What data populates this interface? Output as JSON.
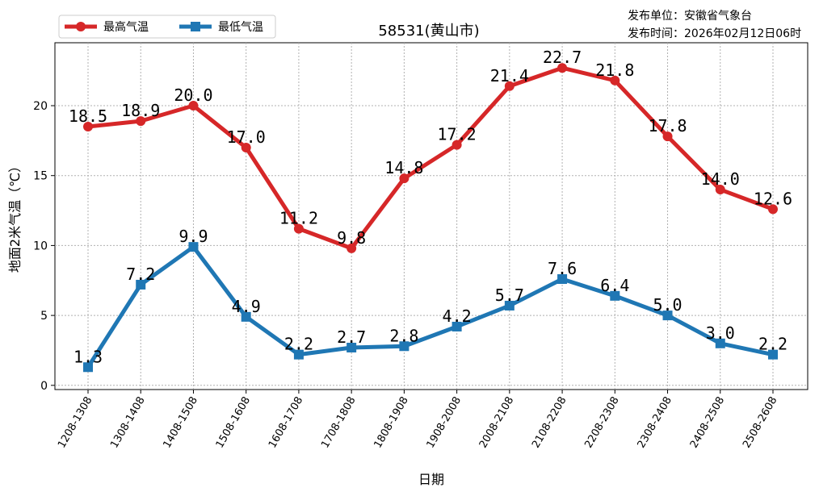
{
  "publish": {
    "unit_label": "发布单位：安徽省气象台",
    "time_label": "发布时间：2026年02月12日06时"
  },
  "chart_data": {
    "type": "line",
    "title": "58531(黄山市)",
    "xlabel": "日期",
    "ylabel": "地面2米气温（℃）",
    "ylim": [
      -0.3,
      24.5
    ],
    "yticks": [
      0,
      5,
      10,
      15,
      20
    ],
    "grid": true,
    "legend_position": "top-left",
    "categories": [
      "1208-1308",
      "1308-1408",
      "1408-1508",
      "1508-1608",
      "1608-1708",
      "1708-1808",
      "1808-1908",
      "1908-2008",
      "2008-2108",
      "2108-2208",
      "2208-2308",
      "2308-2408",
      "2408-2508",
      "2508-2608"
    ],
    "series": [
      {
        "name": "最高气温",
        "color": "#d62728",
        "marker": "circle",
        "values": [
          18.5,
          18.9,
          20.0,
          17.0,
          11.2,
          9.8,
          14.8,
          17.2,
          21.4,
          22.7,
          21.8,
          17.8,
          14.0,
          12.6
        ],
        "labels": [
          "18.5",
          "18.9",
          "20.0",
          "17.0",
          "11.2",
          "9.8",
          "14.8",
          "17.2",
          "21.4",
          "22.7",
          "21.8",
          "17.8",
          "14.0",
          "12.6"
        ]
      },
      {
        "name": "最低气温",
        "color": "#1f77b4",
        "marker": "square",
        "values": [
          1.3,
          7.2,
          9.9,
          4.9,
          2.2,
          2.7,
          2.8,
          4.2,
          5.7,
          7.6,
          6.4,
          5.0,
          3.0,
          2.2
        ],
        "labels": [
          "1.3",
          "7.2",
          "9.9",
          "4.9",
          "2.2",
          "2.7",
          "2.8",
          "4.2",
          "5.7",
          "7.6",
          "6.4",
          "5.0",
          "3.0",
          "2.2"
        ]
      }
    ]
  }
}
